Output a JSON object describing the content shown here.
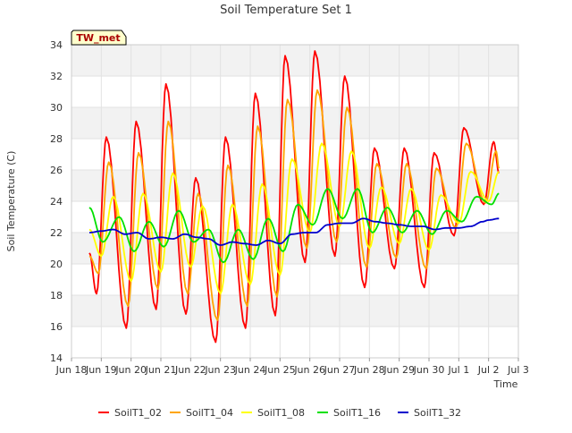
{
  "chart_data": {
    "type": "line",
    "title": "Soil Temperature Set 1",
    "xlabel": "Time",
    "ylabel": "Soil Temperature (C)",
    "station_label": "TW_met",
    "ylim": [
      14,
      34
    ],
    "xlim": [
      0,
      15
    ],
    "x_ticks": [
      {
        "x": 0,
        "label": "Jun 18"
      },
      {
        "x": 1,
        "label": "Jun 19"
      },
      {
        "x": 2,
        "label": "Jun 20"
      },
      {
        "x": 3,
        "label": "Jun 21"
      },
      {
        "x": 4,
        "label": "Jun 22"
      },
      {
        "x": 5,
        "label": "Jun 23"
      },
      {
        "x": 6,
        "label": "Jun 24"
      },
      {
        "x": 7,
        "label": "Jun 25"
      },
      {
        "x": 8,
        "label": "Jun 26"
      },
      {
        "x": 9,
        "label": "Jun 27"
      },
      {
        "x": 10,
        "label": "Jun 28"
      },
      {
        "x": 11,
        "label": "Jun 29"
      },
      {
        "x": 12,
        "label": "Jun 30"
      },
      {
        "x": 13,
        "label": "Jul 1"
      },
      {
        "x": 14,
        "label": "Jul 2"
      },
      {
        "x": 15,
        "label": "Jul 3"
      }
    ],
    "y_ticks": [
      14,
      16,
      18,
      20,
      22,
      24,
      26,
      28,
      30,
      32,
      34
    ],
    "grid": true,
    "legend_position": "bottom",
    "series": [
      {
        "name": "SoilT1_02",
        "color": "#ff0000",
        "points": [
          [
            0.6,
            20.7
          ],
          [
            0.84,
            18.1
          ],
          [
            1.17,
            28.1
          ],
          [
            1.84,
            15.9
          ],
          [
            2.17,
            29.1
          ],
          [
            2.84,
            17.1
          ],
          [
            3.17,
            31.5
          ],
          [
            3.84,
            16.8
          ],
          [
            4.17,
            25.5
          ],
          [
            4.84,
            15.0
          ],
          [
            5.17,
            28.1
          ],
          [
            5.84,
            15.9
          ],
          [
            6.17,
            30.9
          ],
          [
            6.84,
            16.7
          ],
          [
            7.17,
            33.3
          ],
          [
            7.84,
            20.1
          ],
          [
            8.17,
            33.6
          ],
          [
            8.84,
            20.5
          ],
          [
            9.17,
            32.0
          ],
          [
            9.84,
            18.5
          ],
          [
            10.17,
            27.4
          ],
          [
            10.84,
            19.7
          ],
          [
            11.17,
            27.4
          ],
          [
            11.84,
            18.5
          ],
          [
            12.17,
            27.1
          ],
          [
            12.84,
            21.8
          ],
          [
            13.17,
            28.7
          ],
          [
            13.84,
            23.8
          ],
          [
            14.17,
            27.8
          ],
          [
            14.35,
            25.8
          ]
        ]
      },
      {
        "name": "SoilT1_04",
        "color": "#ffa500",
        "points": [
          [
            0.6,
            20.5
          ],
          [
            0.9,
            19.4
          ],
          [
            1.25,
            26.5
          ],
          [
            1.9,
            17.3
          ],
          [
            2.25,
            27.1
          ],
          [
            2.9,
            18.4
          ],
          [
            3.25,
            29.1
          ],
          [
            3.9,
            18.1
          ],
          [
            4.25,
            24.5
          ],
          [
            4.9,
            16.4
          ],
          [
            5.25,
            26.3
          ],
          [
            5.9,
            17.3
          ],
          [
            6.25,
            28.8
          ],
          [
            6.9,
            17.9
          ],
          [
            7.25,
            30.5
          ],
          [
            7.9,
            21.0
          ],
          [
            8.25,
            31.1
          ],
          [
            8.9,
            21.4
          ],
          [
            9.25,
            30.0
          ],
          [
            9.9,
            19.8
          ],
          [
            10.25,
            26.4
          ],
          [
            10.9,
            20.4
          ],
          [
            11.25,
            26.4
          ],
          [
            11.9,
            19.7
          ],
          [
            12.25,
            26.1
          ],
          [
            12.9,
            22.3
          ],
          [
            13.25,
            27.7
          ],
          [
            13.9,
            23.9
          ],
          [
            14.25,
            27.2
          ],
          [
            14.35,
            26.1
          ]
        ]
      },
      {
        "name": "SoilT1_08",
        "color": "#ffff00",
        "points": [
          [
            0.6,
            22.2
          ],
          [
            1.0,
            20.5
          ],
          [
            1.4,
            24.3
          ],
          [
            2.0,
            18.9
          ],
          [
            2.4,
            24.5
          ],
          [
            3.0,
            19.5
          ],
          [
            3.4,
            25.8
          ],
          [
            4.0,
            19.8
          ],
          [
            4.4,
            23.7
          ],
          [
            5.0,
            18.1
          ],
          [
            5.4,
            23.8
          ],
          [
            6.0,
            18.7
          ],
          [
            6.4,
            25.1
          ],
          [
            7.0,
            19.3
          ],
          [
            7.4,
            26.7
          ],
          [
            8.0,
            22.0
          ],
          [
            8.4,
            27.7
          ],
          [
            9.0,
            22.4
          ],
          [
            9.4,
            27.2
          ],
          [
            10.0,
            21.0
          ],
          [
            10.4,
            24.9
          ],
          [
            11.0,
            21.3
          ],
          [
            11.4,
            24.8
          ],
          [
            12.0,
            20.9
          ],
          [
            12.4,
            24.4
          ],
          [
            13.0,
            22.6
          ],
          [
            13.4,
            25.9
          ],
          [
            14.0,
            24.0
          ],
          [
            14.35,
            25.9
          ]
        ]
      },
      {
        "name": "SoilT1_16",
        "color": "#00e000",
        "points": [
          [
            0.6,
            23.6
          ],
          [
            1.05,
            21.4
          ],
          [
            1.6,
            23.0
          ],
          [
            2.1,
            20.8
          ],
          [
            2.6,
            22.7
          ],
          [
            3.1,
            21.1
          ],
          [
            3.6,
            23.4
          ],
          [
            4.1,
            21.4
          ],
          [
            4.6,
            22.2
          ],
          [
            5.1,
            20.1
          ],
          [
            5.6,
            22.2
          ],
          [
            6.1,
            20.3
          ],
          [
            6.6,
            22.9
          ],
          [
            7.1,
            20.8
          ],
          [
            7.6,
            23.8
          ],
          [
            8.1,
            22.5
          ],
          [
            8.6,
            24.8
          ],
          [
            9.1,
            22.9
          ],
          [
            9.6,
            24.8
          ],
          [
            10.1,
            22.0
          ],
          [
            10.6,
            23.6
          ],
          [
            11.1,
            22.0
          ],
          [
            11.6,
            23.4
          ],
          [
            12.1,
            21.9
          ],
          [
            12.6,
            23.4
          ],
          [
            13.1,
            22.7
          ],
          [
            13.6,
            24.3
          ],
          [
            14.1,
            23.8
          ],
          [
            14.35,
            24.5
          ]
        ]
      },
      {
        "name": "SoilT1_32",
        "color": "#0000cc",
        "points": [
          [
            0.6,
            22.0
          ],
          [
            1.0,
            22.1
          ],
          [
            1.4,
            22.2
          ],
          [
            1.8,
            21.9
          ],
          [
            2.2,
            22.0
          ],
          [
            2.6,
            21.6
          ],
          [
            3.0,
            21.7
          ],
          [
            3.4,
            21.6
          ],
          [
            3.8,
            21.9
          ],
          [
            4.2,
            21.7
          ],
          [
            4.6,
            21.6
          ],
          [
            5.0,
            21.2
          ],
          [
            5.4,
            21.4
          ],
          [
            5.8,
            21.3
          ],
          [
            6.2,
            21.2
          ],
          [
            6.6,
            21.5
          ],
          [
            7.0,
            21.3
          ],
          [
            7.4,
            21.9
          ],
          [
            7.8,
            22.0
          ],
          [
            8.2,
            22.0
          ],
          [
            8.6,
            22.5
          ],
          [
            9.0,
            22.6
          ],
          [
            9.4,
            22.6
          ],
          [
            9.8,
            22.9
          ],
          [
            10.2,
            22.7
          ],
          [
            10.6,
            22.6
          ],
          [
            11.0,
            22.5
          ],
          [
            11.4,
            22.4
          ],
          [
            11.8,
            22.4
          ],
          [
            12.2,
            22.2
          ],
          [
            12.6,
            22.3
          ],
          [
            13.0,
            22.3
          ],
          [
            13.4,
            22.4
          ],
          [
            13.8,
            22.7
          ],
          [
            14.0,
            22.8
          ],
          [
            14.35,
            22.9
          ]
        ]
      }
    ]
  }
}
